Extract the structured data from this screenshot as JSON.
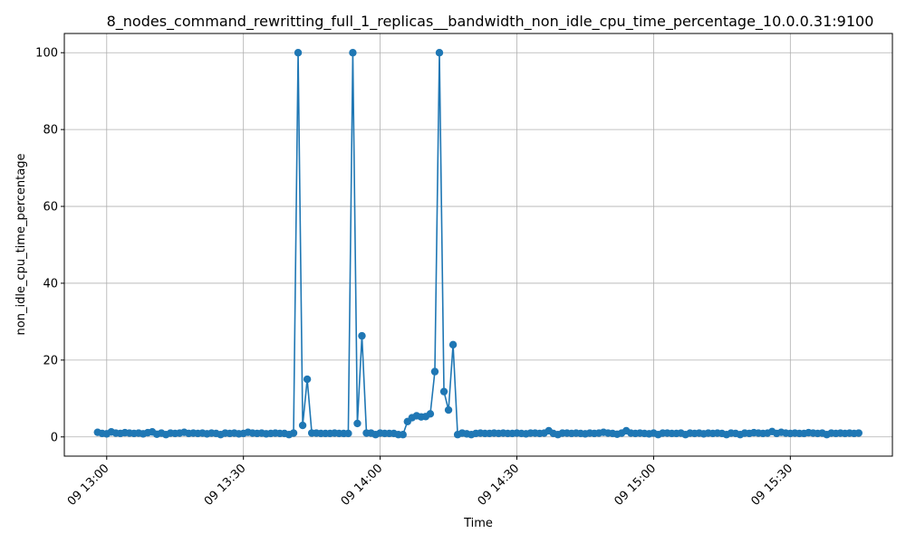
{
  "chart_data": {
    "type": "line",
    "title": "8_nodes_command_rewritting_full_1_replicas__bandwidth_non_idle_cpu_time_percentage_10.0.0.31:9100",
    "xlabel": "Time",
    "ylabel": "non_idle_cpu_time_percentage",
    "x_start": "09 12:58",
    "x_step_minutes": 1,
    "x_ticks": [
      "09 13:00",
      "09 13:30",
      "09 14:00",
      "09 14:30",
      "09 15:00",
      "09 15:30"
    ],
    "x_tick_minutes": [
      780,
      810,
      840,
      870,
      900,
      930
    ],
    "xlim_minutes": [
      770.7,
      952.4
    ],
    "y_ticks": [
      0,
      20,
      40,
      60,
      80,
      100
    ],
    "ylim": [
      -5,
      105
    ],
    "grid": true,
    "color": "#1f77b4",
    "series": [
      {
        "values": [
          1.2,
          0.9,
          0.8,
          1.3,
          1.0,
          0.9,
          1.1,
          1.0,
          0.9,
          1.0,
          0.8,
          1.1,
          1.3,
          0.7,
          1.0,
          0.6,
          1.0,
          0.9,
          1.0,
          1.2,
          0.9,
          1.0,
          0.9,
          1.0,
          0.8,
          1.0,
          0.9,
          0.6,
          1.0,
          0.9,
          1.0,
          0.8,
          0.9,
          1.2,
          1.0,
          0.9,
          1.0,
          0.8,
          0.9,
          1.0,
          0.9,
          0.9,
          0.6,
          1.0,
          100.0,
          3.0,
          15.0,
          1.0,
          1.0,
          0.9,
          0.9,
          0.9,
          1.0,
          0.9,
          0.9,
          0.9,
          100.0,
          3.5,
          26.3,
          1.0,
          1.0,
          0.6,
          1.0,
          0.9,
          0.9,
          0.9,
          0.6,
          0.6,
          4.0,
          5.0,
          5.5,
          5.2,
          5.3,
          6.0,
          17.0,
          100.0,
          11.8,
          7.0,
          24.0,
          0.6,
          1.0,
          0.8,
          0.6,
          0.9,
          1.0,
          0.9,
          0.9,
          1.0,
          0.9,
          1.0,
          0.9,
          0.9,
          1.0,
          0.9,
          0.8,
          1.0,
          1.0,
          0.9,
          1.0,
          1.6,
          0.9,
          0.6,
          1.0,
          1.0,
          0.9,
          1.0,
          0.9,
          0.8,
          1.0,
          0.9,
          1.0,
          1.2,
          1.0,
          0.9,
          0.7,
          1.0,
          1.6,
          1.0,
          0.9,
          1.0,
          0.9,
          0.8,
          1.0,
          0.6,
          1.0,
          1.0,
          0.9,
          0.9,
          1.0,
          0.6,
          1.0,
          0.9,
          1.0,
          0.8,
          1.0,
          0.9,
          1.0,
          0.9,
          0.6,
          1.0,
          0.9,
          0.6,
          1.0,
          0.9,
          1.1,
          1.0,
          0.9,
          1.0,
          1.4,
          0.9,
          1.2,
          1.0,
          0.9,
          1.0,
          0.9,
          0.9,
          1.1,
          1.0,
          0.9,
          1.0,
          0.6,
          1.0,
          0.9,
          1.0,
          0.9,
          1.0,
          0.9,
          1.0
        ]
      }
    ]
  }
}
